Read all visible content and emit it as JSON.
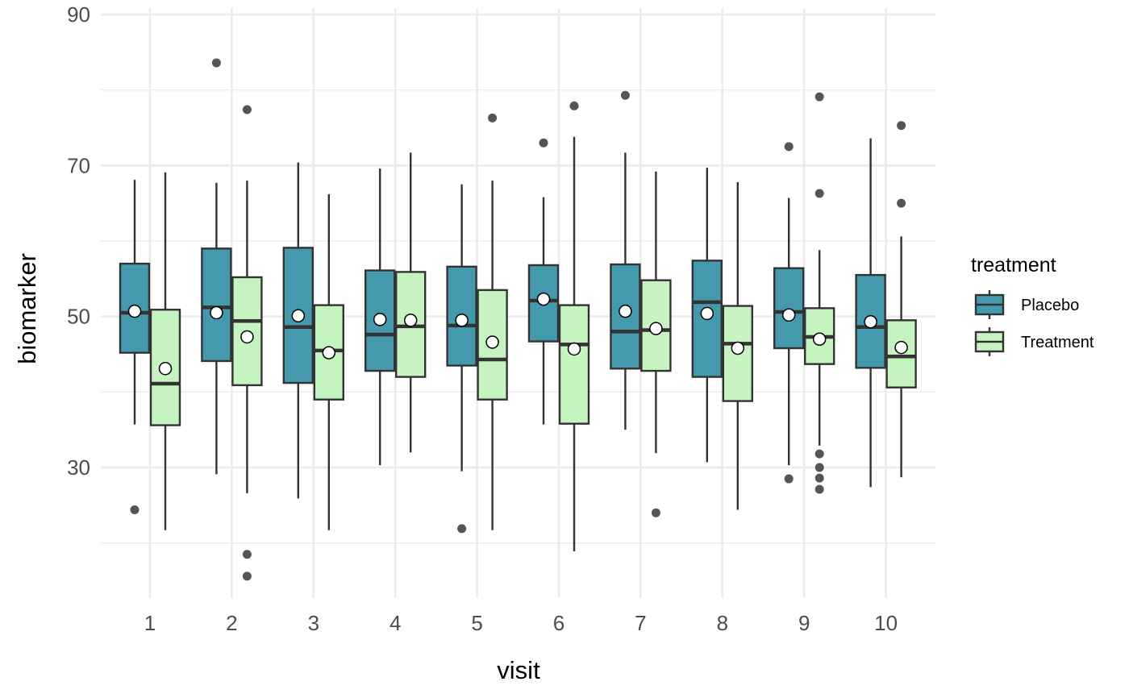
{
  "chart_data": {
    "type": "boxplot",
    "title": "",
    "xlabel": "visit",
    "ylabel": "biomarker",
    "categories": [
      "1",
      "2",
      "3",
      "4",
      "5",
      "6",
      "7",
      "8",
      "9",
      "10"
    ],
    "ylim": [
      12,
      90
    ],
    "y_major_ticks": [
      30,
      50,
      70,
      90
    ],
    "y_minor_ticks": [
      20,
      40,
      60,
      80
    ],
    "grid": true,
    "legend": {
      "title": "treatment",
      "position": "right",
      "entries": [
        "Placebo",
        "Treatment"
      ]
    },
    "colors": {
      "Placebo": "#4599ad",
      "Treatment": "#c5f4c1",
      "outline": "#333333",
      "outlier": "#555555",
      "mean_marker": "#ffffff"
    },
    "series": [
      {
        "name": "Placebo",
        "boxes": [
          {
            "visit": "1",
            "whisker_low": 35.7,
            "q1": 45.2,
            "median": 50.5,
            "q3": 57.0,
            "whisker_high": 68.1,
            "mean": 50.7,
            "outliers": [
              24.4
            ]
          },
          {
            "visit": "2",
            "whisker_low": 29.1,
            "q1": 44.1,
            "median": 51.2,
            "q3": 59.0,
            "whisker_high": 67.7,
            "mean": 50.5,
            "outliers": [
              83.6
            ]
          },
          {
            "visit": "3",
            "whisker_low": 25.9,
            "q1": 41.2,
            "median": 48.6,
            "q3": 59.1,
            "whisker_high": 70.4,
            "mean": 50.1,
            "outliers": []
          },
          {
            "visit": "4",
            "whisker_low": 30.3,
            "q1": 42.8,
            "median": 47.6,
            "q3": 56.1,
            "whisker_high": 69.6,
            "mean": 49.6,
            "outliers": []
          },
          {
            "visit": "5",
            "whisker_low": 29.5,
            "q1": 43.5,
            "median": 48.8,
            "q3": 56.6,
            "whisker_high": 67.5,
            "mean": 49.5,
            "outliers": [
              21.9
            ]
          },
          {
            "visit": "6",
            "whisker_low": 35.7,
            "q1": 46.7,
            "median": 52.1,
            "q3": 56.8,
            "whisker_high": 65.8,
            "mean": 52.3,
            "outliers": [
              73.0
            ]
          },
          {
            "visit": "7",
            "whisker_low": 35.0,
            "q1": 43.1,
            "median": 48.0,
            "q3": 56.9,
            "whisker_high": 71.7,
            "mean": 50.7,
            "outliers": [
              79.3
            ]
          },
          {
            "visit": "8",
            "whisker_low": 30.7,
            "q1": 42.0,
            "median": 51.9,
            "q3": 57.4,
            "whisker_high": 69.7,
            "mean": 50.4,
            "outliers": []
          },
          {
            "visit": "9",
            "whisker_low": 30.3,
            "q1": 45.8,
            "median": 50.6,
            "q3": 56.4,
            "whisker_high": 65.7,
            "mean": 50.2,
            "outliers": [
              72.5,
              28.5
            ]
          },
          {
            "visit": "10",
            "whisker_low": 27.4,
            "q1": 43.2,
            "median": 48.6,
            "q3": 55.5,
            "whisker_high": 73.6,
            "mean": 49.3,
            "outliers": []
          }
        ]
      },
      {
        "name": "Treatment",
        "boxes": [
          {
            "visit": "1",
            "whisker_low": 21.7,
            "q1": 35.6,
            "median": 41.1,
            "q3": 50.9,
            "whisker_high": 69.1,
            "mean": 43.1,
            "outliers": []
          },
          {
            "visit": "2",
            "whisker_low": 26.6,
            "q1": 40.9,
            "median": 49.4,
            "q3": 55.2,
            "whisker_high": 68.0,
            "mean": 47.3,
            "outliers": [
              77.4,
              18.5,
              15.6
            ]
          },
          {
            "visit": "3",
            "whisker_low": 21.7,
            "q1": 39.0,
            "median": 45.5,
            "q3": 51.5,
            "whisker_high": 66.2,
            "mean": 45.2,
            "outliers": []
          },
          {
            "visit": "4",
            "whisker_low": 32.0,
            "q1": 42.0,
            "median": 48.7,
            "q3": 55.9,
            "whisker_high": 71.7,
            "mean": 49.5,
            "outliers": []
          },
          {
            "visit": "5",
            "whisker_low": 21.7,
            "q1": 39.0,
            "median": 44.3,
            "q3": 53.5,
            "whisker_high": 68.0,
            "mean": 46.6,
            "outliers": [
              76.3
            ]
          },
          {
            "visit": "6",
            "whisker_low": 18.9,
            "q1": 35.8,
            "median": 46.3,
            "q3": 51.5,
            "whisker_high": 73.8,
            "mean": 45.7,
            "outliers": [
              77.9
            ]
          },
          {
            "visit": "7",
            "whisker_low": 31.9,
            "q1": 42.8,
            "median": 48.2,
            "q3": 54.8,
            "whisker_high": 69.2,
            "mean": 48.4,
            "outliers": [
              24.0
            ]
          },
          {
            "visit": "8",
            "whisker_low": 24.4,
            "q1": 38.8,
            "median": 46.4,
            "q3": 51.4,
            "whisker_high": 67.8,
            "mean": 45.8,
            "outliers": []
          },
          {
            "visit": "9",
            "whisker_low": 32.9,
            "q1": 43.7,
            "median": 47.3,
            "q3": 51.1,
            "whisker_high": 58.8,
            "mean": 47.0,
            "outliers": [
              79.1,
              66.3,
              31.8,
              30.0,
              28.6,
              27.1
            ]
          },
          {
            "visit": "10",
            "whisker_low": 28.7,
            "q1": 40.6,
            "median": 44.7,
            "q3": 49.5,
            "whisker_high": 60.6,
            "mean": 45.9,
            "outliers": [
              75.3,
              65.0
            ]
          }
        ]
      }
    ]
  }
}
